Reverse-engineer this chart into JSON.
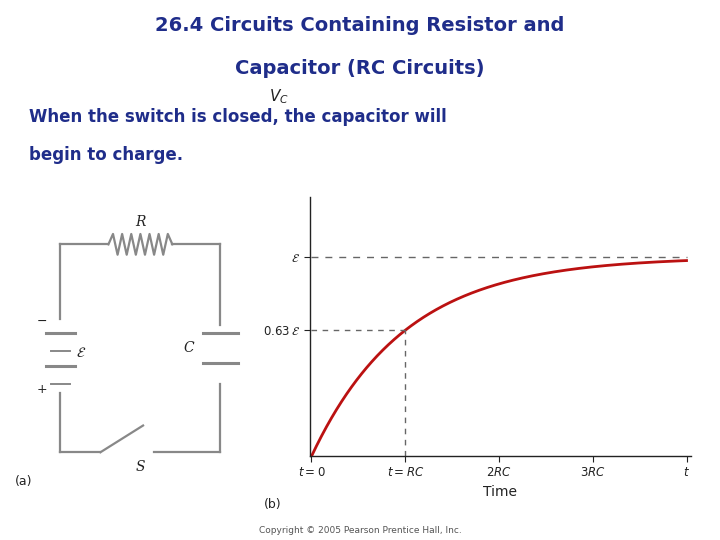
{
  "title_line1": "26.4 Circuits Containing Resistor and",
  "title_line2": "Capacitor (RC Circuits)",
  "title_color": "#1f2d8a",
  "subtitle_line1": "When the switch is closed, the capacitor will",
  "subtitle_line2": "begin to charge.",
  "subtitle_color": "#1f2d8a",
  "background_color": "#ffffff",
  "curve_color": "#bb1111",
  "dashed_color": "#666666",
  "axis_color": "#222222",
  "circuit_color": "#888888",
  "label_color": "#222222",
  "copyright": "Copyright © 2005 Pearson Prentice Hall, Inc.",
  "title_fontsize": 14,
  "subtitle_fontsize": 12
}
